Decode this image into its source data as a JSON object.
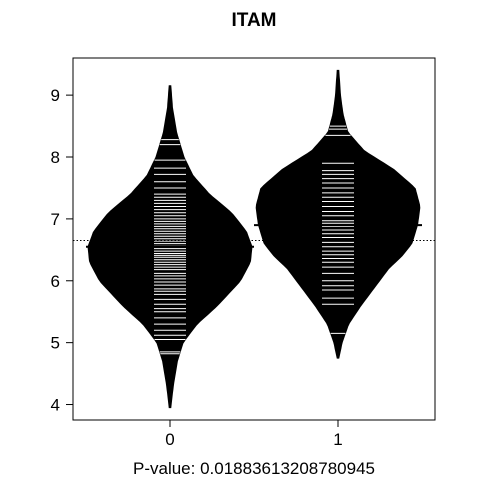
{
  "chart_data": {
    "type": "beanplot",
    "title": "ITAM",
    "xlabel": "P-value: 0.01883613208780945",
    "categories": [
      "0",
      "1"
    ],
    "y_ticks": [
      4,
      5,
      6,
      7,
      8,
      9
    ],
    "ylim": [
      3.75,
      9.6
    ],
    "overall_mean": 6.65,
    "grid": false,
    "legend": "none",
    "colors": {
      "bean": "#000000",
      "beanline": "#ffffff",
      "mean": "#000000"
    },
    "series": [
      {
        "category": "0",
        "mean": 6.55,
        "range": [
          3.95,
          9.15
        ],
        "density": [
          [
            3.95,
            0.01
          ],
          [
            4.3,
            0.04
          ],
          [
            4.7,
            0.09
          ],
          [
            5.0,
            0.16
          ],
          [
            5.3,
            0.33
          ],
          [
            5.6,
            0.58
          ],
          [
            6.0,
            0.86
          ],
          [
            6.3,
            0.98
          ],
          [
            6.55,
            1.0
          ],
          [
            6.8,
            0.93
          ],
          [
            7.1,
            0.75
          ],
          [
            7.4,
            0.48
          ],
          [
            7.7,
            0.28
          ],
          [
            8.0,
            0.17
          ],
          [
            8.4,
            0.08
          ],
          [
            8.8,
            0.03
          ],
          [
            9.15,
            0.01
          ]
        ],
        "observations": [
          4.82,
          4.85,
          5.05,
          5.12,
          5.2,
          5.3,
          5.4,
          5.5,
          5.55,
          5.62,
          5.7,
          5.78,
          5.83,
          5.87,
          5.93,
          5.98,
          6.03,
          6.08,
          6.12,
          6.18,
          6.22,
          6.26,
          6.3,
          6.34,
          6.38,
          6.41,
          6.44,
          6.48,
          6.52,
          6.56,
          6.6,
          6.64,
          6.68,
          6.72,
          6.76,
          6.8,
          6.84,
          6.88,
          6.92,
          6.96,
          7.0,
          7.05,
          7.1,
          7.15,
          7.2,
          7.25,
          7.3,
          7.35,
          7.4,
          7.5,
          7.6,
          7.72,
          7.82,
          7.95,
          8.2,
          8.28
        ]
      },
      {
        "category": "1",
        "mean": 6.9,
        "range": [
          4.75,
          9.4
        ],
        "density": [
          [
            4.75,
            0.01
          ],
          [
            5.0,
            0.05
          ],
          [
            5.3,
            0.13
          ],
          [
            5.6,
            0.28
          ],
          [
            5.9,
            0.45
          ],
          [
            6.2,
            0.62
          ],
          [
            6.4,
            0.78
          ],
          [
            6.6,
            0.9
          ],
          [
            6.9,
            0.97
          ],
          [
            7.2,
            1.0
          ],
          [
            7.5,
            0.94
          ],
          [
            7.8,
            0.68
          ],
          [
            8.1,
            0.32
          ],
          [
            8.4,
            0.12
          ],
          [
            8.7,
            0.06
          ],
          [
            9.0,
            0.03
          ],
          [
            9.4,
            0.01
          ]
        ],
        "observations": [
          5.15,
          5.62,
          5.72,
          5.85,
          5.92,
          6.0,
          6.12,
          6.22,
          6.3,
          6.36,
          6.42,
          6.48,
          6.55,
          6.62,
          6.7,
          6.76,
          6.82,
          6.88,
          6.93,
          6.97,
          7.05,
          7.12,
          7.2,
          7.28,
          7.35,
          7.42,
          7.5,
          7.58,
          7.65,
          7.72,
          7.78,
          7.9,
          8.35,
          8.45,
          8.5
        ]
      }
    ]
  }
}
